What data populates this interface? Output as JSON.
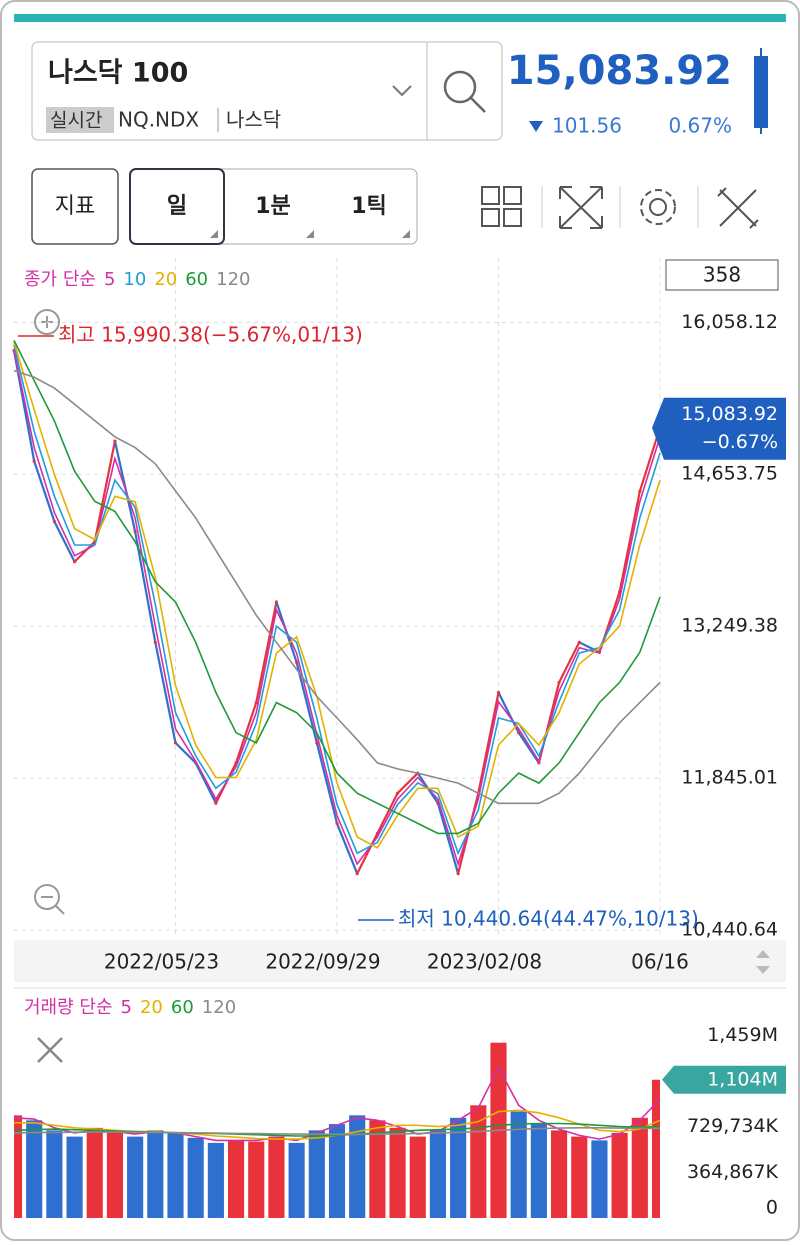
{
  "header": {
    "name": "나스닥 100",
    "tag": "실시간",
    "code": "NQ.NDX",
    "market": "나스닥",
    "price": "15,083.92",
    "change": "101.56",
    "change_pct": "0.67%"
  },
  "toolbar": {
    "indicator": "지표",
    "tabs": [
      "일",
      "1분",
      "1틱"
    ]
  },
  "chart_data": [
    {
      "type": "line",
      "legend_title": "종가 단순",
      "count_label": 358,
      "categories": [
        null,
        null,
        null,
        null,
        null,
        null,
        null,
        null,
        "2022/05/23",
        null,
        null,
        null,
        null,
        null,
        null,
        null,
        "2022/09/29",
        null,
        null,
        null,
        null,
        null,
        null,
        null,
        "2023/02/08",
        null,
        null,
        null,
        null,
        null,
        null,
        null,
        "06/16"
      ],
      "values": [
        15798,
        14775,
        14217,
        13845,
        14030,
        14960,
        14124,
        13100,
        12170,
        11985,
        11612,
        11985,
        12543,
        13473,
        12915,
        12170,
        11426,
        10961,
        11333,
        11705,
        11891,
        11612,
        10961,
        11705,
        12636,
        12264,
        11985,
        12729,
        13100,
        13008,
        13566,
        14496,
        15083.92
      ],
      "color": "#e8323c",
      "up_color": "#e8323c",
      "down_color": "#2f6fd0",
      "series": [
        {
          "name": "5",
          "color": "#d42fa8",
          "values": [
            15800,
            14900,
            14300,
            13900,
            14000,
            14800,
            14250,
            13250,
            12300,
            12000,
            11650,
            11950,
            12450,
            13400,
            13000,
            12250,
            11500,
            11050,
            11300,
            11650,
            11850,
            11650,
            11050,
            11650,
            12550,
            12300,
            12000,
            12650,
            13050,
            13000,
            13500,
            14400,
            15000
          ]
        },
        {
          "name": "10",
          "color": "#1e9fd8",
          "values": [
            15850,
            15050,
            14450,
            14000,
            14000,
            14600,
            14350,
            13450,
            12450,
            12050,
            11750,
            11900,
            12350,
            13250,
            13100,
            12400,
            11600,
            11150,
            11250,
            11600,
            11800,
            11700,
            11150,
            11550,
            12400,
            12350,
            12050,
            12550,
            13000,
            13050,
            13400,
            14250,
            14850
          ]
        },
        {
          "name": "20",
          "color": "#e6b000",
          "values": [
            15880,
            15250,
            14650,
            14150,
            14050,
            14450,
            14400,
            13700,
            12700,
            12150,
            11850,
            11850,
            12200,
            13000,
            13150,
            12600,
            11800,
            11300,
            11200,
            11500,
            11750,
            11750,
            11300,
            11400,
            12150,
            12350,
            12150,
            12450,
            12900,
            13050,
            13250,
            14000,
            14600
          ]
        },
        {
          "name": "60",
          "color": "#1e9a3c",
          "values": [
            15891,
            15519,
            15147,
            14682,
            14403,
            14310,
            14030,
            13659,
            13473,
            13100,
            12636,
            12264,
            12170,
            12543,
            12450,
            12264,
            11891,
            11705,
            11612,
            11519,
            11426,
            11333,
            11333,
            11426,
            11705,
            11891,
            11798,
            11985,
            12264,
            12543,
            12729,
            13008,
            13519
          ]
        },
        {
          "name": "120",
          "color": "#8a8a8a",
          "values": [
            15612,
            15550,
            15450,
            15300,
            15150,
            15000,
            14900,
            14750,
            14500,
            14250,
            13950,
            13650,
            13350,
            13100,
            12850,
            12600,
            12400,
            12200,
            11985,
            11930,
            11891,
            11845,
            11798,
            11705,
            11612,
            11612,
            11612,
            11705,
            11891,
            12124,
            12356,
            12543,
            12729
          ]
        }
      ],
      "ylim": [
        10394,
        16653
      ],
      "yticks": [
        {
          "value": 16058.12,
          "label": "16,058.12"
        },
        {
          "value": 14653.75,
          "label": "14,653.75"
        },
        {
          "value": 13249.38,
          "label": "13,249.38"
        },
        {
          "value": 11845.01,
          "label": "11,845.01"
        },
        {
          "value": 10440.64,
          "label": "10,440.64"
        }
      ],
      "grid": true,
      "annotations": [
        {
          "text": "최고 15,990.38(−5.67%,01/13)",
          "color": "#d8262e"
        },
        {
          "text": "최저 10,440.64(44.47%,10/13)",
          "color": "#1f5fbf"
        }
      ],
      "last_label": {
        "price": "15,083.92",
        "change": "−0.67%"
      }
    },
    {
      "type": "bar",
      "legend_title": "거래량 단순",
      "values": [
        820000,
        780000,
        700000,
        650000,
        720000,
        690000,
        650000,
        700000,
        680000,
        640000,
        600000,
        620000,
        610000,
        650000,
        600000,
        700000,
        750000,
        820000,
        780000,
        720000,
        650000,
        700000,
        800000,
        900000,
        1400000,
        850000,
        750000,
        700000,
        650000,
        620000,
        680000,
        800000,
        1104000
      ],
      "last_value_label": "1,104M",
      "series": [
        {
          "name": "5",
          "color": "#d42fa8",
          "values": [
            800000,
            790000,
            720000,
            680000,
            700000,
            690000,
            670000,
            690000,
            680000,
            650000,
            620000,
            620000,
            620000,
            640000,
            620000,
            680000,
            740000,
            800000,
            780000,
            730000,
            670000,
            690000,
            780000,
            880000,
            1200000,
            900000,
            780000,
            710000,
            660000,
            630000,
            670000,
            780000,
            950000
          ]
        },
        {
          "name": "20",
          "color": "#e6b000",
          "values": [
            760000,
            760000,
            740000,
            720000,
            710000,
            700000,
            690000,
            690000,
            680000,
            670000,
            655000,
            645000,
            635000,
            630000,
            630000,
            640000,
            660000,
            690000,
            720000,
            740000,
            740000,
            730000,
            740000,
            770000,
            850000,
            860000,
            840000,
            800000,
            750000,
            700000,
            690000,
            710000,
            780000
          ]
        },
        {
          "name": "60",
          "color": "#1e9a3c",
          "values": [
            700000,
            705000,
            710000,
            705000,
            700000,
            695000,
            690000,
            685000,
            680000,
            678000,
            675000,
            670000,
            665000,
            660000,
            655000,
            655000,
            660000,
            670000,
            680000,
            690000,
            700000,
            705000,
            710000,
            720000,
            740000,
            750000,
            755000,
            755000,
            750000,
            740000,
            730000,
            725000,
            730000
          ]
        },
        {
          "name": "120",
          "color": "#8a8a8a",
          "values": [
            680000,
            682000,
            684000,
            685000,
            686000,
            686000,
            685000,
            684000,
            682000,
            680000,
            678000,
            676000,
            674000,
            672000,
            670000,
            669000,
            668000,
            668000,
            670000,
            672000,
            676000,
            680000,
            684000,
            690000,
            700000,
            708000,
            714000,
            718000,
            720000,
            720000,
            718000,
            716000,
            716000
          ]
        }
      ],
      "ylim": [
        0,
        1741000
      ],
      "yticks": [
        {
          "value": 1459000,
          "label": "1,459M"
        },
        {
          "value": 729734,
          "label": "729,734K"
        },
        {
          "value": 364867,
          "label": "364,867K"
        },
        0
      ],
      "grid": false
    }
  ]
}
